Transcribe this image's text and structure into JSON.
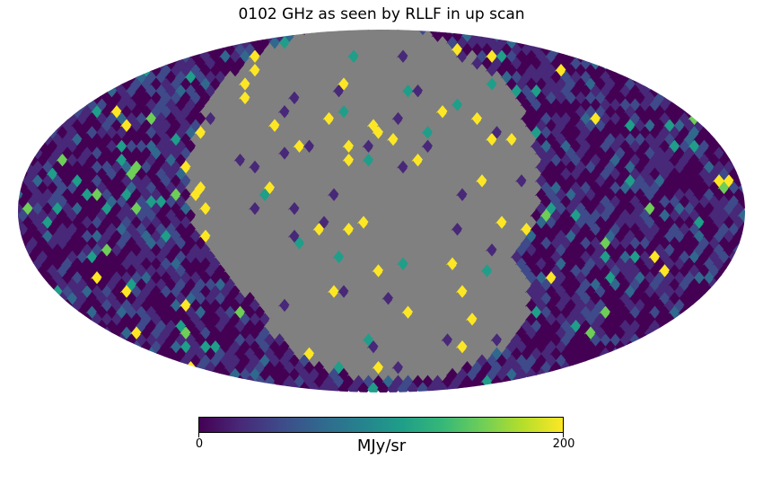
{
  "title": "0102 GHz as seen by RLLF in up scan",
  "colorbar": {
    "label": "MJy/sr",
    "min_label": "0",
    "max_label": "200",
    "range": [
      0,
      200
    ],
    "colormap": "viridis"
  },
  "map": {
    "projection": "mollweide",
    "masked_color": "#808080",
    "background_low_color": "#3b1d5c"
  },
  "colors": {
    "viridis": [
      "#440154",
      "#482878",
      "#3e4a89",
      "#31688e",
      "#26828e",
      "#1f9e89",
      "#35b779",
      "#6ece58",
      "#b5de2b",
      "#fde725"
    ]
  }
}
